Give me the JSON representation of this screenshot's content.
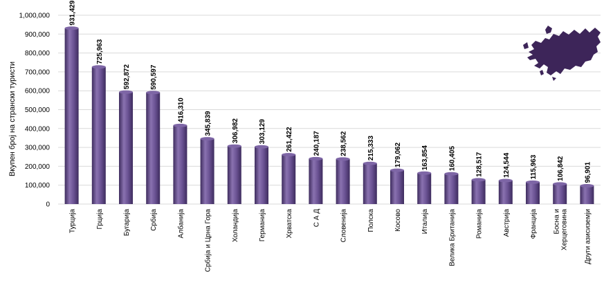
{
  "chart_data": {
    "type": "bar",
    "title": "",
    "xlabel": "",
    "ylabel": "Вкупен број на странски туристи",
    "ylim": [
      0,
      1000000
    ],
    "yticks": [
      "0",
      "100,000",
      "200,000",
      "300,000",
      "400,000",
      "500,000",
      "600,000",
      "700,000",
      "800,000",
      "900,000",
      "1,000,000"
    ],
    "grid": true,
    "legend": "none",
    "categories": [
      [
        "Турција"
      ],
      [
        "Грција"
      ],
      [
        "Бугарија"
      ],
      [
        "Србија"
      ],
      [
        "Албанија"
      ],
      [
        "Србија и Црна Гора"
      ],
      [
        "Холандија"
      ],
      [
        "Германија"
      ],
      [
        "Хрватска"
      ],
      [
        "С А Д"
      ],
      [
        "Словенија"
      ],
      [
        "Полска"
      ],
      [
        "Косово"
      ],
      [
        "Италија"
      ],
      [
        "Велика Британија"
      ],
      [
        "Романија"
      ],
      [
        "Австрија"
      ],
      [
        "Франција"
      ],
      [
        "Босна и",
        "Херцеговина"
      ],
      [
        "Други азисиземји"
      ]
    ],
    "values": [
      931429,
      725963,
      592872,
      590597,
      416310,
      345839,
      306982,
      303129,
      261422,
      240187,
      238562,
      215333,
      179062,
      163854,
      160405,
      128517,
      124544,
      115963,
      106842,
      96901
    ],
    "value_labels": [
      "931,429",
      "725,963",
      "592,872",
      "590,597",
      "416,310",
      "345,839",
      "306,982",
      "303,129",
      "261,422",
      "240,187",
      "238,562",
      "215,333",
      "179,062",
      "163,854",
      "160,405",
      "128,517",
      "124,544",
      "115,963",
      "106,842",
      "96,901"
    ],
    "colors": {
      "bar": "#5b4581",
      "bar_light": "#8a72b0",
      "bar_dark": "#3e2c5e",
      "europe_map": "#3d2559"
    }
  },
  "decoration": {
    "icon": "europe-map-icon"
  }
}
